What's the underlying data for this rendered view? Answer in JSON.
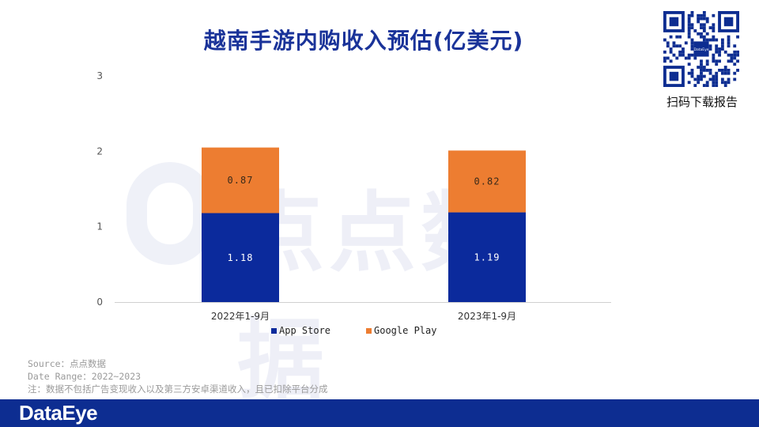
{
  "title": "越南手游内购收入预估(亿美元)",
  "qr": {
    "caption": "扫码下载报告",
    "logo_text": "DataEye"
  },
  "watermark": {
    "text": "点点数据"
  },
  "chart_data": {
    "type": "bar",
    "stacked": true,
    "categories": [
      "2022年1-9月",
      "2023年1-9月"
    ],
    "series": [
      {
        "name": "App Store",
        "values": [
          1.18,
          1.19
        ],
        "color": "#0b2a9c"
      },
      {
        "name": "Google Play",
        "values": [
          0.87,
          0.82
        ],
        "color": "#ed7d31"
      }
    ],
    "ylim": [
      0,
      3
    ],
    "yticks": [
      "0",
      "1",
      "2",
      "3"
    ],
    "data_labels": [
      [
        "1.18",
        "1.19"
      ],
      [
        "0.87",
        "0.82"
      ]
    ],
    "grid": false,
    "legend_position": "bottom"
  },
  "legend": [
    {
      "label": "App Store",
      "color": "#0b2a9c"
    },
    {
      "label": "Google Play",
      "color": "#ed7d31"
    }
  ],
  "notes": {
    "source": "Source：点点数据",
    "date_range": "Date Range：2022~2023",
    "note": "注：数据不包括广告变现收入以及第三方安卓渠道收入，且已扣除平台分成"
  },
  "footer": {
    "logo": "DataEye"
  }
}
